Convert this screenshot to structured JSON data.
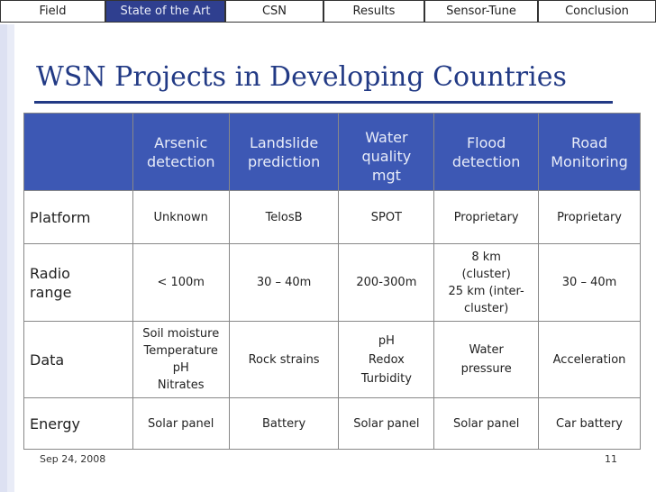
{
  "nav": {
    "tabs": [
      {
        "label": "Field",
        "active": false
      },
      {
        "label": "State of the Art",
        "active": true
      },
      {
        "label": "CSN",
        "active": false
      },
      {
        "label": "Results",
        "active": false
      },
      {
        "label": "Sensor-Tune",
        "active": false
      },
      {
        "label": "Conclusion",
        "active": false
      }
    ]
  },
  "slide": {
    "title": "WSN Projects in Developing Countries"
  },
  "table": {
    "columns": [
      [
        "Arsenic",
        "detection"
      ],
      [
        "Landslide",
        "prediction"
      ],
      [
        "Water",
        "quality",
        "mgt"
      ],
      [
        "Flood",
        "detection"
      ],
      [
        "Road",
        "Monitoring"
      ]
    ],
    "rows": {
      "platform": {
        "label": "Platform",
        "cells": [
          "Unknown",
          "TelosB",
          "SPOT",
          "Proprietary",
          "Proprietary"
        ]
      },
      "radio": {
        "label": [
          "Radio",
          "range"
        ],
        "cells": [
          [
            "< 100m"
          ],
          [
            "30 – 40m"
          ],
          [
            "200-300m"
          ],
          [
            "8 km",
            "(cluster)",
            "25 km (inter-",
            "cluster)"
          ],
          [
            "30 – 40m"
          ]
        ]
      },
      "data": {
        "label": "Data",
        "cells": [
          [
            "Soil moisture",
            "Temperature",
            "pH",
            "Nitrates"
          ],
          [
            "Rock strains"
          ],
          [
            "pH",
            "Redox",
            "Turbidity"
          ],
          [
            "Water",
            "pressure"
          ],
          [
            "Acceleration"
          ]
        ]
      },
      "energy": {
        "label": "Energy",
        "cells": [
          "Solar panel",
          "Battery",
          "Solar panel",
          "Solar panel",
          "Car battery"
        ]
      }
    }
  },
  "footer": {
    "date": "Sep 24, 2008",
    "page": "11"
  }
}
